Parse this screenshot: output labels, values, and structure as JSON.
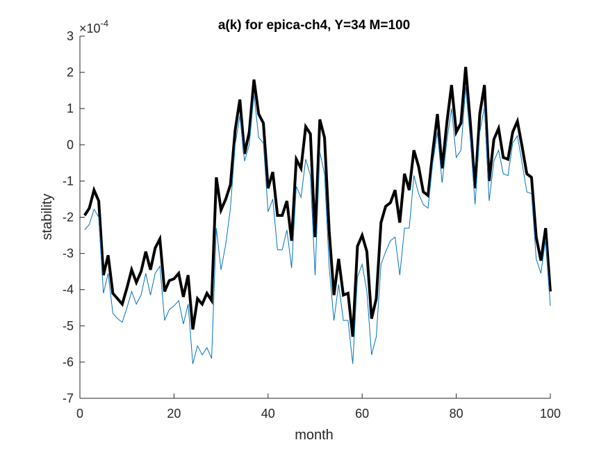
{
  "chart_data": {
    "type": "line",
    "title": "a(k) for epica-ch4, Y=34 M=100",
    "xlabel": "month",
    "ylabel": "stability",
    "y_exponent": {
      "base": "×10",
      "power": "-4"
    },
    "xlim": [
      0,
      100
    ],
    "ylim": [
      -7,
      3
    ],
    "xticks": [
      0,
      20,
      40,
      60,
      80,
      100
    ],
    "yticks": [
      3,
      2,
      1,
      0,
      -1,
      -2,
      -3,
      -4,
      -5,
      -6,
      -7
    ],
    "xtick_labels": [
      "0",
      "20",
      "40",
      "60",
      "80",
      "100"
    ],
    "ytick_labels": [
      "3",
      "2",
      "1",
      "0",
      "-1",
      "-2",
      "-3",
      "-4",
      "-5",
      "-6",
      "-7"
    ],
    "grid": false,
    "x": [
      1,
      2,
      3,
      4,
      5,
      6,
      7,
      8,
      9,
      10,
      11,
      12,
      13,
      14,
      15,
      16,
      17,
      18,
      19,
      20,
      21,
      22,
      23,
      24,
      25,
      26,
      27,
      28,
      29,
      30,
      31,
      32,
      33,
      34,
      35,
      36,
      37,
      38,
      39,
      40,
      41,
      42,
      43,
      44,
      45,
      46,
      47,
      48,
      49,
      50,
      51,
      52,
      53,
      54,
      55,
      56,
      57,
      58,
      59,
      60,
      61,
      62,
      63,
      64,
      65,
      66,
      67,
      68,
      69,
      70,
      71,
      72,
      73,
      74,
      75,
      76,
      77,
      78,
      79,
      80,
      81,
      82,
      83,
      84,
      85,
      86,
      87,
      88,
      89,
      90,
      91,
      92,
      93,
      94,
      95,
      96,
      97,
      98,
      99,
      100
    ],
    "series": [
      {
        "color": "#000000",
        "width": 4,
        "values": [
          -1.95,
          -1.75,
          -1.25,
          -1.55,
          -3.6,
          -3.05,
          -4.1,
          -4.25,
          -4.4,
          -3.95,
          -3.45,
          -3.8,
          -3.5,
          -2.95,
          -3.45,
          -2.85,
          -2.6,
          -4.05,
          -3.75,
          -3.7,
          -3.55,
          -4.2,
          -3.6,
          -5.1,
          -4.25,
          -4.4,
          -4.1,
          -4.3,
          -0.9,
          -1.8,
          -1.5,
          -1.1,
          0.4,
          1.25,
          -0.25,
          0.35,
          1.8,
          0.85,
          0.6,
          -1.2,
          -0.75,
          -1.95,
          -1.95,
          -1.55,
          -2.65,
          -0.4,
          -0.65,
          0.5,
          0.3,
          -2.55,
          0.7,
          0.2,
          -2.4,
          -4.15,
          -3.15,
          -4.15,
          -4.1,
          -5.3,
          -2.8,
          -2.5,
          -2.95,
          -4.8,
          -4.25,
          -2.15,
          -1.7,
          -1.6,
          -1.25,
          -2.15,
          -0.8,
          -1.25,
          -0.15,
          -0.6,
          -1.3,
          -1.4,
          -0.2,
          0.85,
          -0.65,
          0.6,
          1.65,
          0.35,
          0.6,
          2.15,
          0.6,
          -1.2,
          0.85,
          1.65,
          -1.0,
          0.15,
          0.45,
          -0.35,
          -0.4,
          0.35,
          0.65,
          -0.05,
          -0.8,
          -0.9,
          -2.55,
          -3.2,
          -2.3,
          -4.05
        ]
      },
      {
        "color": "#0072BD",
        "width": 1,
        "values": [
          -2.35,
          -2.2,
          -1.78,
          -2.0,
          -4.1,
          -3.55,
          -4.65,
          -4.8,
          -4.9,
          -4.5,
          -4.05,
          -4.4,
          -4.15,
          -3.55,
          -4.15,
          -3.55,
          -3.35,
          -4.85,
          -4.55,
          -4.45,
          -4.3,
          -4.95,
          -4.4,
          -6.05,
          -5.55,
          -5.8,
          -5.6,
          -5.9,
          -2.3,
          -3.45,
          -2.75,
          -1.75,
          0.0,
          0.8,
          -0.45,
          0.0,
          1.4,
          0.2,
          0.05,
          -1.85,
          -1.5,
          -2.9,
          -2.9,
          -2.35,
          -3.4,
          -1.15,
          -1.45,
          -0.4,
          -0.85,
          -3.6,
          -0.2,
          -0.8,
          -3.4,
          -4.85,
          -3.85,
          -4.85,
          -4.85,
          -6.05,
          -3.65,
          -3.3,
          -4.05,
          -5.8,
          -5.3,
          -3.3,
          -2.95,
          -2.65,
          -2.55,
          -3.6,
          -2.3,
          -2.3,
          -0.85,
          -1.35,
          -1.65,
          -1.75,
          -0.5,
          0.35,
          -1.05,
          0.1,
          1.0,
          -0.35,
          -0.15,
          1.6,
          0.15,
          -1.65,
          0.35,
          1.05,
          -1.55,
          -0.45,
          -0.15,
          -0.8,
          -0.85,
          0.05,
          0.25,
          -0.5,
          -1.3,
          -1.35,
          -3.15,
          -3.55,
          -2.6,
          -4.45
        ]
      }
    ]
  }
}
